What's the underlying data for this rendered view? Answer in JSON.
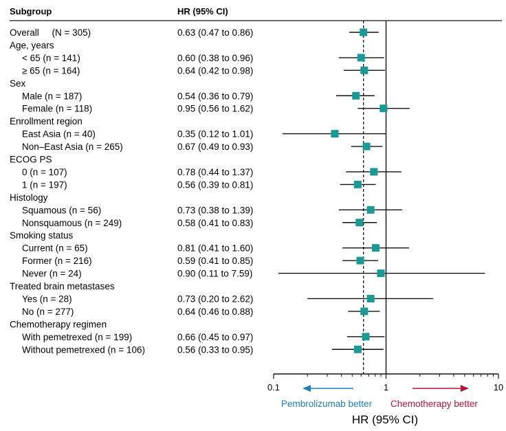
{
  "header": {
    "col1": "Subgroup",
    "col2": "HR (95% CI)"
  },
  "chart_data": {
    "type": "forest",
    "x_scale": "log",
    "xlim": [
      0.1,
      10
    ],
    "x_ticks": [
      "0.1",
      "1",
      "10"
    ],
    "reference_line": 1,
    "overall_hr_line": 0.63,
    "xlabel": "HR (95% CI)",
    "left_annotation": "Pembrolizumab better",
    "right_annotation": "Chemotherapy better",
    "colors": {
      "marker": "#1a9a95",
      "left_arrow": "#1f7fb5",
      "right_arrow": "#b5163a",
      "line": "#111111"
    },
    "rows": [
      {
        "label": "Overall     (N = 305)",
        "indent": 0,
        "ci_text": "0.63 (0.47 to 0.86)",
        "hr": 0.63,
        "lo": 0.47,
        "hi": 0.86
      },
      {
        "label": "Age, years",
        "indent": 0
      },
      {
        "label": "< 65 (n = 141)",
        "indent": 1,
        "ci_text": "0.60 (0.38 to 0.96)",
        "hr": 0.6,
        "lo": 0.38,
        "hi": 0.96
      },
      {
        "label": "≥ 65 (n = 164)",
        "indent": 1,
        "ci_text": "0.64 (0.42 to 0.98)",
        "hr": 0.64,
        "lo": 0.42,
        "hi": 0.98
      },
      {
        "label": "Sex",
        "indent": 0
      },
      {
        "label": "Male (n = 187)",
        "indent": 1,
        "ci_text": "0.54 (0.36 to 0.79)",
        "hr": 0.54,
        "lo": 0.36,
        "hi": 0.79
      },
      {
        "label": "Female (n = 118)",
        "indent": 1,
        "ci_text": "0.95 (0.56 to 1.62)",
        "hr": 0.95,
        "lo": 0.56,
        "hi": 1.62
      },
      {
        "label": "Enrollment region",
        "indent": 0
      },
      {
        "label": "East Asia (n = 40)",
        "indent": 1,
        "ci_text": "0.35 (0.12 to 1.01)",
        "hr": 0.35,
        "lo": 0.12,
        "hi": 1.01
      },
      {
        "label": "Non–East Asia (n = 265)",
        "indent": 1,
        "ci_text": "0.67 (0.49 to 0.93)",
        "hr": 0.67,
        "lo": 0.49,
        "hi": 0.93
      },
      {
        "label": "ECOG PS",
        "indent": 0
      },
      {
        "label": "0 (n = 107)",
        "indent": 1,
        "ci_text": "0.78 (0.44 to 1.37)",
        "hr": 0.78,
        "lo": 0.44,
        "hi": 1.37
      },
      {
        "label": "1 (n = 197)",
        "indent": 1,
        "ci_text": "0.56 (0.39 to 0.81)",
        "hr": 0.56,
        "lo": 0.39,
        "hi": 0.81
      },
      {
        "label": "Histology",
        "indent": 0
      },
      {
        "label": "Squamous (n = 56)",
        "indent": 1,
        "ci_text": "0.73 (0.38 to 1.39)",
        "hr": 0.73,
        "lo": 0.38,
        "hi": 1.39
      },
      {
        "label": "Nonsquamous (n = 249)",
        "indent": 1,
        "ci_text": "0.58 (0.41 to 0.83)",
        "hr": 0.58,
        "lo": 0.41,
        "hi": 0.83
      },
      {
        "label": "Smoking status",
        "indent": 0
      },
      {
        "label": "Current (n = 65)",
        "indent": 1,
        "ci_text": "0.81 (0.41 to 1.60)",
        "hr": 0.81,
        "lo": 0.41,
        "hi": 1.6
      },
      {
        "label": "Former (n = 216)",
        "indent": 1,
        "ci_text": "0.59 (0.41 to 0.85)",
        "hr": 0.59,
        "lo": 0.41,
        "hi": 0.85
      },
      {
        "label": "Never (n = 24)",
        "indent": 1,
        "ci_text": "0.90 (0.11 to 7.59)",
        "hr": 0.9,
        "lo": 0.11,
        "hi": 7.59
      },
      {
        "label": "Treated brain metastases",
        "indent": 0
      },
      {
        "label": "Yes (n = 28)",
        "indent": 1,
        "ci_text": "0.73 (0.20 to 2.62)",
        "hr": 0.73,
        "lo": 0.2,
        "hi": 2.62
      },
      {
        "label": "No (n = 277)",
        "indent": 1,
        "ci_text": "0.64 (0.46 to 0.88)",
        "hr": 0.64,
        "lo": 0.46,
        "hi": 0.88
      },
      {
        "label": "Chemotherapy regimen",
        "indent": 0
      },
      {
        "label": "With pemetrexed (n = 199)",
        "indent": 1,
        "ci_text": "0.66 (0.45 to 0.97)",
        "hr": 0.66,
        "lo": 0.45,
        "hi": 0.97
      },
      {
        "label": "Without pemetrexed (n = 106)",
        "indent": 1,
        "ci_text": "0.56 (0.33 to 0.95)",
        "hr": 0.56,
        "lo": 0.33,
        "hi": 0.95
      }
    ]
  }
}
